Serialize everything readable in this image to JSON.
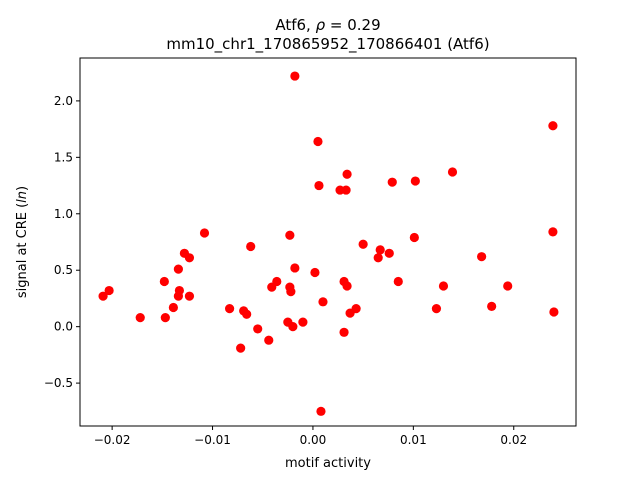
{
  "chart_data": {
    "type": "scatter",
    "title_line1_prefix": "Atf6, ",
    "title_line1_symbol": "ρ",
    "title_line1_suffix": " = 0.29",
    "title_line2": "mm10_chr1_170865952_170866401 (Atf6)",
    "xlabel": "motif activity",
    "ylabel_prefix": "signal at CRE (",
    "ylabel_symbol": "ln",
    "ylabel_suffix": ")",
    "xlim": [
      -0.0232,
      0.0262
    ],
    "ylim": [
      -0.88,
      2.38
    ],
    "xticks": [
      -0.02,
      -0.01,
      0.0,
      0.01,
      0.02
    ],
    "xtick_labels": [
      "−0.02",
      "−0.01",
      "0.00",
      "0.01",
      "0.02"
    ],
    "yticks": [
      -0.5,
      0.0,
      0.5,
      1.0,
      1.5,
      2.0
    ],
    "ytick_labels": [
      "−0.5",
      "0.0",
      "0.5",
      "1.0",
      "1.5",
      "2.0"
    ],
    "marker_color": "#ff0000",
    "points": [
      {
        "x": -0.0209,
        "y": 0.27
      },
      {
        "x": -0.0203,
        "y": 0.32
      },
      {
        "x": -0.0172,
        "y": 0.08
      },
      {
        "x": -0.0148,
        "y": 0.4
      },
      {
        "x": -0.0147,
        "y": 0.08
      },
      {
        "x": -0.0139,
        "y": 0.17
      },
      {
        "x": -0.0134,
        "y": 0.51
      },
      {
        "x": -0.0134,
        "y": 0.27
      },
      {
        "x": -0.0133,
        "y": 0.32
      },
      {
        "x": -0.0128,
        "y": 0.65
      },
      {
        "x": -0.0123,
        "y": 0.61
      },
      {
        "x": -0.0123,
        "y": 0.27
      },
      {
        "x": -0.0108,
        "y": 0.83
      },
      {
        "x": -0.0083,
        "y": 0.16
      },
      {
        "x": -0.0072,
        "y": -0.19
      },
      {
        "x": -0.0069,
        "y": 0.14
      },
      {
        "x": -0.0066,
        "y": 0.11
      },
      {
        "x": -0.0062,
        "y": 0.71
      },
      {
        "x": -0.0055,
        "y": -0.02
      },
      {
        "x": -0.0044,
        "y": -0.12
      },
      {
        "x": -0.0041,
        "y": 0.35
      },
      {
        "x": -0.0036,
        "y": 0.4
      },
      {
        "x": -0.0025,
        "y": 0.04
      },
      {
        "x": -0.0023,
        "y": 0.81
      },
      {
        "x": -0.0023,
        "y": 0.35
      },
      {
        "x": -0.0022,
        "y": 0.31
      },
      {
        "x": -0.002,
        "y": 0.0
      },
      {
        "x": -0.0018,
        "y": 2.22
      },
      {
        "x": -0.0018,
        "y": 0.52
      },
      {
        "x": -0.001,
        "y": 0.04
      },
      {
        "x": 0.0002,
        "y": 0.48
      },
      {
        "x": 0.0005,
        "y": 1.64
      },
      {
        "x": 0.0006,
        "y": 1.25
      },
      {
        "x": 0.0008,
        "y": -0.75
      },
      {
        "x": 0.001,
        "y": 0.22
      },
      {
        "x": 0.0027,
        "y": 1.21
      },
      {
        "x": 0.0031,
        "y": 0.4
      },
      {
        "x": 0.0031,
        "y": -0.05
      },
      {
        "x": 0.0033,
        "y": 1.21
      },
      {
        "x": 0.0034,
        "y": 1.35
      },
      {
        "x": 0.0034,
        "y": 0.36
      },
      {
        "x": 0.0037,
        "y": 0.12
      },
      {
        "x": 0.0043,
        "y": 0.16
      },
      {
        "x": 0.005,
        "y": 0.73
      },
      {
        "x": 0.0065,
        "y": 0.61
      },
      {
        "x": 0.0067,
        "y": 0.68
      },
      {
        "x": 0.0076,
        "y": 0.65
      },
      {
        "x": 0.0079,
        "y": 1.28
      },
      {
        "x": 0.0085,
        "y": 0.4
      },
      {
        "x": 0.0101,
        "y": 0.79
      },
      {
        "x": 0.0102,
        "y": 1.29
      },
      {
        "x": 0.0123,
        "y": 0.16
      },
      {
        "x": 0.013,
        "y": 0.36
      },
      {
        "x": 0.0139,
        "y": 1.37
      },
      {
        "x": 0.0168,
        "y": 0.62
      },
      {
        "x": 0.0178,
        "y": 0.18
      },
      {
        "x": 0.0194,
        "y": 0.36
      },
      {
        "x": 0.0239,
        "y": 1.78
      },
      {
        "x": 0.0239,
        "y": 0.84
      },
      {
        "x": 0.024,
        "y": 0.13
      }
    ]
  }
}
